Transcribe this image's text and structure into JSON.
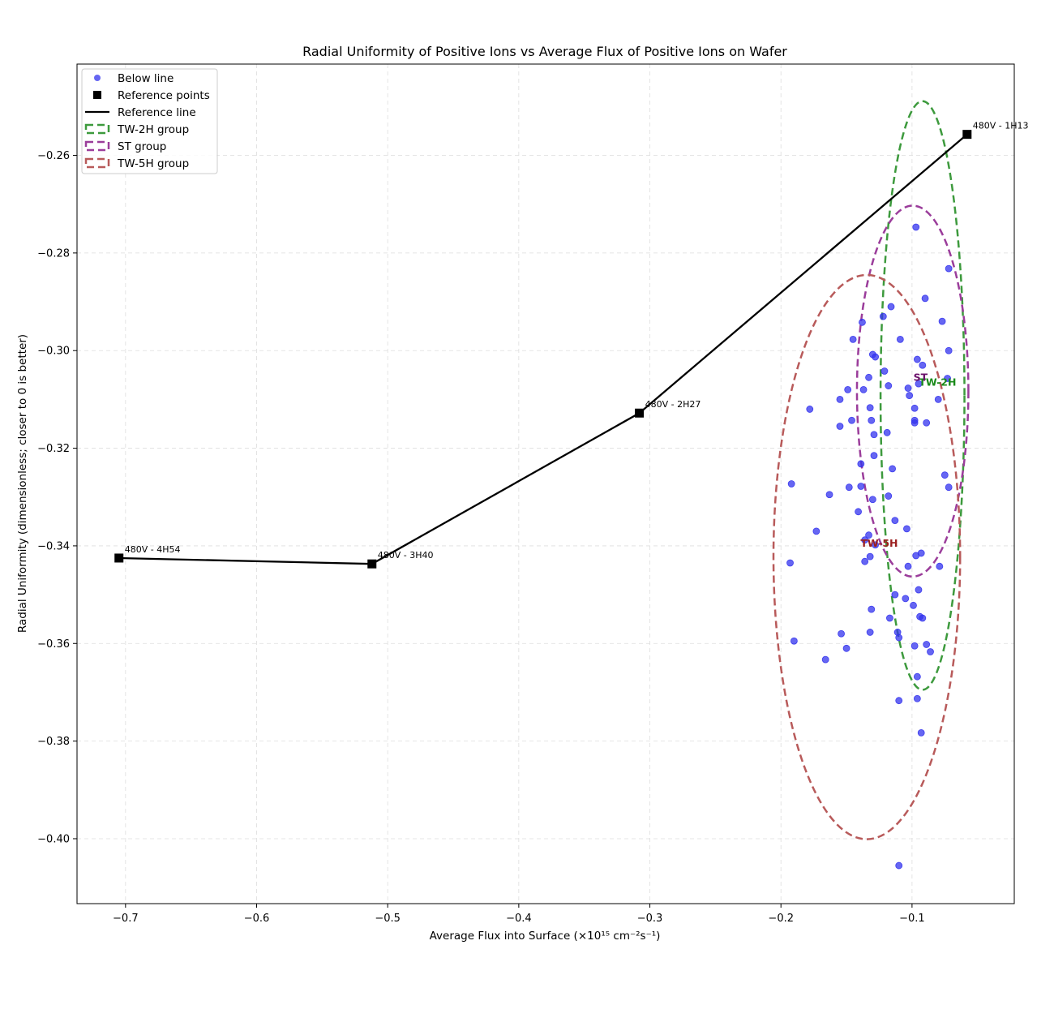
{
  "chart_data": {
    "type": "scatter",
    "title": "Radial Uniformity of Positive Ions vs Average Flux of Positive Ions on Wafer",
    "xlabel": "Average Flux into Surface (×10¹⁵ cm⁻²s⁻¹)",
    "ylabel": "Radial Uniformity (dimensionless; closer to 0 is better)",
    "xlim": [
      -0.737,
      -0.022
    ],
    "ylim": [
      -0.4133,
      -0.2413
    ],
    "xticks": [
      -0.7,
      -0.6,
      -0.5,
      -0.4,
      -0.3,
      -0.2,
      -0.1
    ],
    "xtick_labels": [
      "−0.7",
      "−0.6",
      "−0.5",
      "−0.4",
      "−0.3",
      "−0.2",
      "−0.1"
    ],
    "yticks": [
      -0.26,
      -0.28,
      -0.3,
      -0.32,
      -0.34,
      -0.36,
      -0.38,
      -0.4
    ],
    "ytick_labels": [
      "−0.26",
      "−0.28",
      "−0.30",
      "−0.32",
      "−0.34",
      "−0.36",
      "−0.38",
      "−0.40"
    ],
    "grid": true,
    "legend_position": "top-left",
    "legend": [
      "Below line",
      "Reference points",
      "Reference line",
      "TW-2H group",
      "ST group",
      "TW-5H group"
    ],
    "series": [
      {
        "name": "Below line",
        "color": "#3333ee",
        "points": [
          [
            -0.097,
            -0.2747
          ],
          [
            -0.072,
            -0.2832
          ],
          [
            -0.09,
            -0.2893
          ],
          [
            -0.116,
            -0.291
          ],
          [
            -0.122,
            -0.293
          ],
          [
            -0.138,
            -0.2942
          ],
          [
            -0.077,
            -0.294
          ],
          [
            -0.145,
            -0.2977
          ],
          [
            -0.109,
            -0.2977
          ],
          [
            -0.072,
            -0.3
          ],
          [
            -0.13,
            -0.3008
          ],
          [
            -0.128,
            -0.3013
          ],
          [
            -0.096,
            -0.3018
          ],
          [
            -0.092,
            -0.303
          ],
          [
            -0.121,
            -0.3042
          ],
          [
            -0.133,
            -0.3055
          ],
          [
            -0.073,
            -0.3057
          ],
          [
            -0.095,
            -0.3068
          ],
          [
            -0.118,
            -0.3072
          ],
          [
            -0.103,
            -0.3077
          ],
          [
            -0.137,
            -0.308
          ],
          [
            -0.149,
            -0.308
          ],
          [
            -0.102,
            -0.3092
          ],
          [
            -0.155,
            -0.31
          ],
          [
            -0.08,
            -0.31
          ],
          [
            -0.178,
            -0.312
          ],
          [
            -0.132,
            -0.3117
          ],
          [
            -0.098,
            -0.3118
          ],
          [
            -0.146,
            -0.3143
          ],
          [
            -0.131,
            -0.3143
          ],
          [
            -0.098,
            -0.3143
          ],
          [
            -0.098,
            -0.3148
          ],
          [
            -0.089,
            -0.3148
          ],
          [
            -0.155,
            -0.3155
          ],
          [
            -0.129,
            -0.3172
          ],
          [
            -0.119,
            -0.3168
          ],
          [
            -0.129,
            -0.3215
          ],
          [
            -0.139,
            -0.3232
          ],
          [
            -0.115,
            -0.3242
          ],
          [
            -0.075,
            -0.3255
          ],
          [
            -0.192,
            -0.3273
          ],
          [
            -0.148,
            -0.328
          ],
          [
            -0.139,
            -0.3278
          ],
          [
            -0.072,
            -0.328
          ],
          [
            -0.163,
            -0.3295
          ],
          [
            -0.118,
            -0.3298
          ],
          [
            -0.13,
            -0.3305
          ],
          [
            -0.141,
            -0.333
          ],
          [
            -0.113,
            -0.3348
          ],
          [
            -0.104,
            -0.3365
          ],
          [
            -0.173,
            -0.337
          ],
          [
            -0.133,
            -0.3378
          ],
          [
            -0.136,
            -0.3388
          ],
          [
            -0.128,
            -0.3398
          ],
          [
            -0.132,
            -0.3422
          ],
          [
            -0.097,
            -0.342
          ],
          [
            -0.093,
            -0.3415
          ],
          [
            -0.136,
            -0.3432
          ],
          [
            -0.193,
            -0.3435
          ],
          [
            -0.103,
            -0.3442
          ],
          [
            -0.079,
            -0.3442
          ],
          [
            -0.095,
            -0.349
          ],
          [
            -0.113,
            -0.35
          ],
          [
            -0.105,
            -0.3508
          ],
          [
            -0.099,
            -0.3522
          ],
          [
            -0.131,
            -0.353
          ],
          [
            -0.117,
            -0.3548
          ],
          [
            -0.094,
            -0.3545
          ],
          [
            -0.092,
            -0.3548
          ],
          [
            -0.154,
            -0.358
          ],
          [
            -0.132,
            -0.3577
          ],
          [
            -0.111,
            -0.3577
          ],
          [
            -0.11,
            -0.3588
          ],
          [
            -0.19,
            -0.3595
          ],
          [
            -0.089,
            -0.3602
          ],
          [
            -0.098,
            -0.3605
          ],
          [
            -0.15,
            -0.361
          ],
          [
            -0.086,
            -0.3617
          ],
          [
            -0.166,
            -0.3633
          ],
          [
            -0.096,
            -0.3668
          ],
          [
            -0.11,
            -0.3717
          ],
          [
            -0.096,
            -0.3713
          ],
          [
            -0.093,
            -0.3783
          ],
          [
            -0.11,
            -0.4055
          ]
        ]
      },
      {
        "name": "Reference points",
        "color": "#000000",
        "points": [
          [
            -0.705,
            -0.3425
          ],
          [
            -0.512,
            -0.3437
          ],
          [
            -0.308,
            -0.3128
          ],
          [
            -0.058,
            -0.2557
          ]
        ],
        "labels": [
          "480V - 4H54",
          "480V - 3H40",
          "480V - 2H27",
          "480V - 1H13"
        ]
      }
    ],
    "reference_line": {
      "name": "Reference line",
      "color": "#000000",
      "x": [
        -0.705,
        -0.512,
        -0.308,
        -0.058
      ],
      "y": [
        -0.3425,
        -0.3437,
        -0.3128,
        -0.2557
      ]
    },
    "groups": [
      {
        "name": "TW-2H group",
        "label": "TW-2H",
        "color": "#3d9a3d",
        "label_color": "#1a8a1a",
        "center": [
          -0.092,
          -0.3092
        ],
        "rx": 0.032,
        "ry": 0.0603,
        "label_pos": [
          -0.0805,
          -0.3065
        ]
      },
      {
        "name": "ST group",
        "label": "ST",
        "color": "#9b3d9b",
        "label_color": "#6b106b",
        "center": [
          -0.0995,
          -0.3083
        ],
        "rx": 0.0425,
        "ry": 0.038,
        "label_pos": [
          -0.0935,
          -0.3055
        ]
      },
      {
        "name": "TW-5H group",
        "label": "TW-5H",
        "color": "#b85a5a",
        "label_color": "#9b1f1f",
        "center": [
          -0.1345,
          -0.3423
        ],
        "rx": 0.0712,
        "ry": 0.0578,
        "label_pos": [
          -0.125,
          -0.3395
        ]
      }
    ]
  }
}
